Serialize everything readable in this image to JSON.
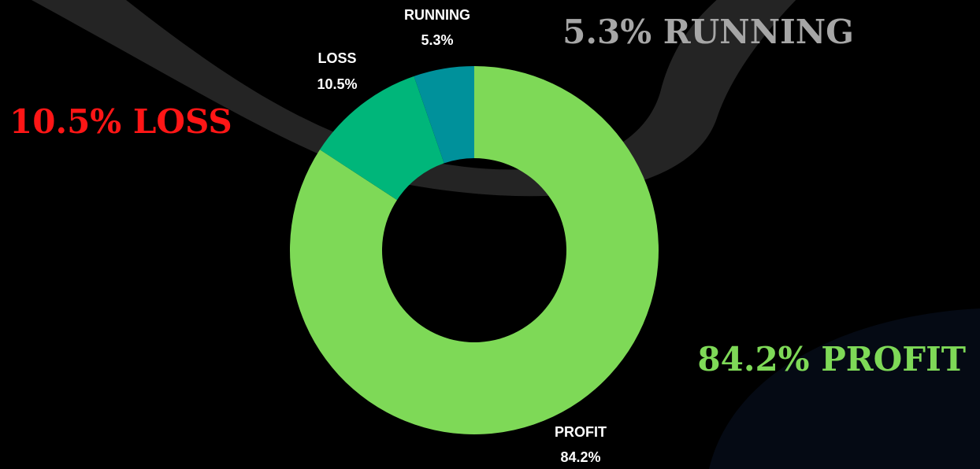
{
  "chart_data": {
    "type": "donut",
    "categories": [
      "PROFIT",
      "LOSS",
      "RUNNING"
    ],
    "values": [
      84.2,
      10.5,
      5.3
    ],
    "value_labels": [
      "84.2%",
      "10.5%",
      "5.3%"
    ],
    "colors": [
      "#7ed957",
      "#00b67a",
      "#00919b"
    ],
    "annotations": [
      {
        "text": "84.2% PROFIT",
        "color": "#7ed957"
      },
      {
        "text": "10.5% LOSS",
        "color": "#ff1616"
      },
      {
        "text": "5.3% RUNNING",
        "color": "#a6a6a6"
      }
    ]
  }
}
